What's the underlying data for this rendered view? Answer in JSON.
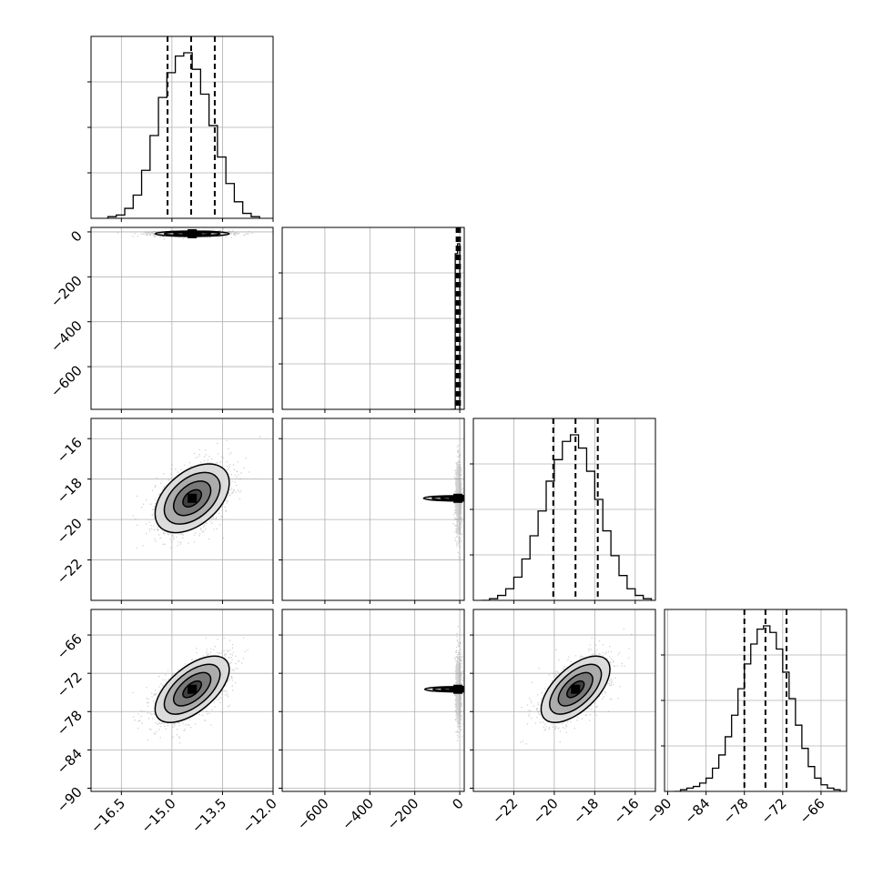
{
  "chart_data": {
    "type": "corner",
    "title": "",
    "parameters": 4,
    "quantile_levels": [
      0.16,
      0.5,
      0.84
    ],
    "grid": true,
    "colors": {
      "line": "#000000",
      "grid": "#b0b0b0",
      "scatter": "#7f7f7f"
    },
    "axes": {
      "p0": {
        "range": [
          -17.4,
          -12.0
        ],
        "ticks": [
          -16.5,
          -15.0,
          -13.5,
          -12.0
        ],
        "tick_labels": [
          "−16.5",
          "−15.0",
          "−13.5",
          "−12.0"
        ]
      },
      "p1": {
        "range": [
          -790,
          20
        ],
        "ticks": [
          -600,
          -400,
          -200,
          0
        ],
        "tick_labels": [
          "−600",
          "−400",
          "−200",
          "0"
        ]
      },
      "p2": {
        "range": [
          -24.0,
          -15.0
        ],
        "ticks": [
          -22,
          -20,
          -18,
          -16
        ],
        "tick_labels": [
          "−22",
          "−20",
          "−18",
          "−16"
        ]
      },
      "p3": {
        "range": [
          -90.5,
          -62.0
        ],
        "ticks": [
          -90,
          -84,
          -78,
          -72,
          -66
        ],
        "tick_labels": [
          "−90",
          "−84",
          "−78",
          "−72",
          "−66"
        ]
      }
    },
    "histograms": [
      {
        "param": "p0",
        "bin_edges": [
          -16.9,
          -16.65,
          -16.4,
          -16.15,
          -15.9,
          -15.65,
          -15.4,
          -15.15,
          -14.9,
          -14.65,
          -14.4,
          -14.15,
          -13.9,
          -13.65,
          -13.4,
          -13.15,
          -12.9,
          -12.65,
          -12.4
        ],
        "counts": [
          0.01,
          0.02,
          0.06,
          0.14,
          0.29,
          0.5,
          0.73,
          0.88,
          0.98,
          1.0,
          0.9,
          0.75,
          0.56,
          0.37,
          0.21,
          0.1,
          0.03,
          0.01
        ],
        "quantiles": [
          -15.13,
          -14.43,
          -13.73
        ]
      },
      {
        "param": "p1",
        "bin_edges": [
          -40,
          -30,
          -20,
          -10,
          0,
          10
        ],
        "counts": [
          0.0,
          0.0,
          0.94,
          1.0,
          0.0
        ],
        "quantiles": [
          -14,
          -7,
          1
        ]
      },
      {
        "param": "p2",
        "bin_edges": [
          -23.6,
          -23.2,
          -22.8,
          -22.4,
          -22.0,
          -21.6,
          -21.2,
          -20.8,
          -20.4,
          -20.0,
          -19.6,
          -19.2,
          -18.8,
          -18.4,
          -18.0,
          -17.6,
          -17.2,
          -16.8,
          -16.4,
          -16.0,
          -15.6,
          -15.2
        ],
        "counts": [
          0.0,
          0.01,
          0.03,
          0.07,
          0.14,
          0.25,
          0.39,
          0.54,
          0.72,
          0.85,
          0.96,
          1.0,
          0.92,
          0.78,
          0.61,
          0.42,
          0.27,
          0.15,
          0.07,
          0.03,
          0.01
        ],
        "quantiles": [
          -20.05,
          -18.95,
          -17.85
        ]
      },
      {
        "param": "p3",
        "bin_edges": [
          -89.0,
          -88.0,
          -87.0,
          -86.0,
          -85.0,
          -84.0,
          -83.0,
          -82.0,
          -81.0,
          -80.0,
          -79.0,
          -78.0,
          -77.0,
          -76.0,
          -75.0,
          -74.0,
          -73.0,
          -72.0,
          -71.0,
          -70.0,
          -69.0,
          -68.0,
          -67.0,
          -66.0,
          -65.0,
          -64.0,
          -63.0,
          -62.0
        ],
        "counts": [
          0.0,
          0.01,
          0.02,
          0.03,
          0.05,
          0.08,
          0.14,
          0.22,
          0.33,
          0.46,
          0.62,
          0.77,
          0.89,
          0.98,
          1.0,
          0.96,
          0.86,
          0.72,
          0.56,
          0.4,
          0.26,
          0.15,
          0.08,
          0.04,
          0.02,
          0.01,
          0.0
        ],
        "quantiles": [
          -78.0,
          -74.7,
          -71.4
        ]
      }
    ],
    "joint_distributions": [
      {
        "x": "p0",
        "y": "p1",
        "center": [
          -14.4,
          -8
        ],
        "sd": [
          0.55,
          6
        ],
        "corr": 0.0,
        "scatter_points": 1600
      },
      {
        "x": "p0",
        "y": "p2",
        "center": [
          -14.4,
          -18.95
        ],
        "sd": [
          0.55,
          0.85
        ],
        "corr": 0.45,
        "scatter_points": 1500
      },
      {
        "x": "p1",
        "y": "p2",
        "center": [
          -8,
          -18.95
        ],
        "sd": [
          6,
          0.85
        ],
        "corr": 0.0,
        "scatter_points": 1200
      },
      {
        "x": "p0",
        "y": "p3",
        "center": [
          -14.4,
          -74.5
        ],
        "sd": [
          0.55,
          2.6
        ],
        "corr": 0.6,
        "scatter_points": 1500
      },
      {
        "x": "p1",
        "y": "p3",
        "center": [
          -8,
          -74.5
        ],
        "sd": [
          6,
          2.6
        ],
        "corr": 0.0,
        "scatter_points": 1200
      },
      {
        "x": "p2",
        "y": "p3",
        "center": [
          -18.95,
          -74.5
        ],
        "sd": [
          0.85,
          2.6
        ],
        "corr": 0.6,
        "scatter_points": 1500
      }
    ],
    "contour_sigma_levels": [
      0.5,
      1.0,
      1.5,
      2.0
    ]
  }
}
